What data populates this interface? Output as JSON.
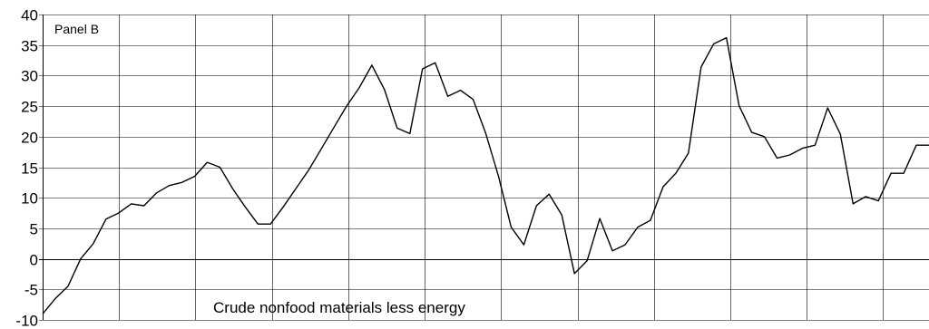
{
  "chart_data": {
    "type": "line",
    "panel_label": "Panel B",
    "annotation": "Crude nonfood materials less energy",
    "ylim": [
      -10,
      40
    ],
    "yticks": [
      -10,
      -5,
      0,
      5,
      10,
      15,
      20,
      25,
      30,
      35,
      40
    ],
    "x_vertical_gridlines": 12,
    "grid": true,
    "series": [
      {
        "values": [
          -9.0,
          -6.5,
          -4.5,
          0.0,
          2.5,
          6.5,
          7.5,
          9.0,
          8.7,
          10.8,
          12.0,
          12.5,
          13.5,
          15.8,
          15.0,
          11.5,
          8.5,
          5.7,
          5.7,
          8.5,
          11.5,
          14.5,
          18.0,
          21.5,
          25.0,
          28.0,
          31.7,
          27.7,
          21.4,
          20.5,
          31.1,
          32.1,
          26.6,
          27.6,
          26.1,
          20.5,
          13.5,
          5.2,
          2.3,
          8.7,
          10.6,
          7.2,
          -2.4,
          -0.3,
          6.6,
          1.3,
          2.3,
          5.2,
          6.3,
          11.8,
          14.0,
          17.3,
          31.4,
          35.2,
          36.2,
          25.1,
          20.7,
          20.0,
          16.5,
          17.0,
          18.1,
          18.6,
          24.7,
          20.4,
          9.0,
          10.2,
          9.5,
          14.0,
          14.0,
          18.6,
          18.6
        ]
      }
    ]
  }
}
